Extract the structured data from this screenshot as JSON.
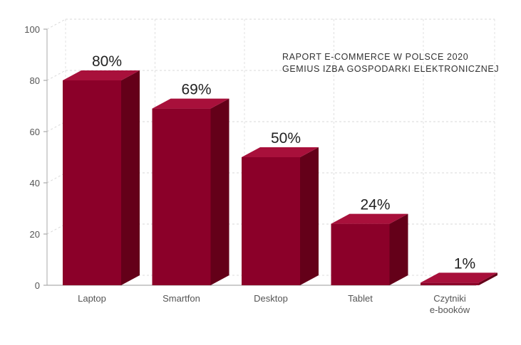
{
  "chart_data": {
    "type": "bar",
    "categories": [
      "Laptop",
      "Smartfon",
      "Desktop",
      "Tablet",
      "Czytniki\ne-booków"
    ],
    "values": [
      80,
      69,
      50,
      24,
      1
    ],
    "value_labels": [
      "80%",
      "69%",
      "50%",
      "24%",
      "1%"
    ],
    "yticks": [
      "0",
      "20",
      "40",
      "60",
      "80",
      "100"
    ],
    "ylim": [
      0,
      100
    ],
    "grid": true,
    "style": "3d-column",
    "colors": {
      "front": "#8b0029",
      "side": "#640019",
      "top": "#a8103b"
    },
    "source_lines": [
      "RAPORT E-COMMERCE W POLSCE 2020",
      "GEMIUS IZBA GOSPODARKI ELEKTRONICZNEJ"
    ]
  }
}
